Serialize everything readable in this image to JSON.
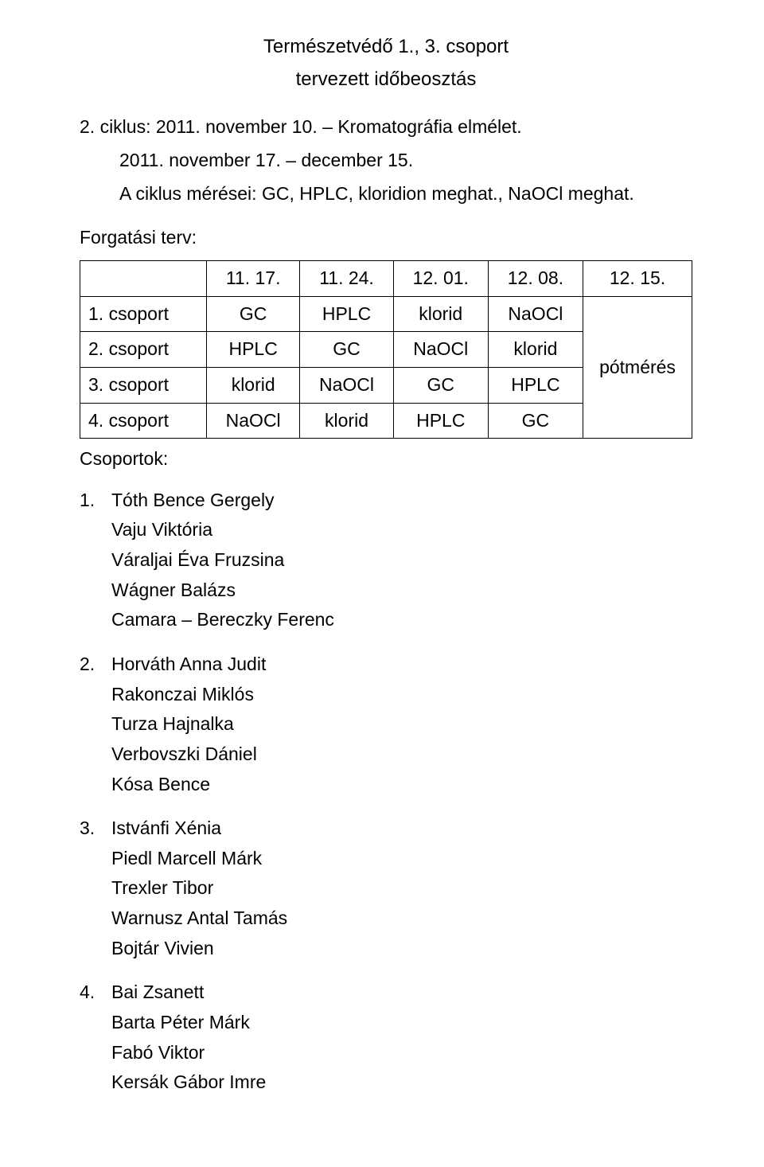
{
  "title": "Természetvédő 1., 3. csoport",
  "subtitle": "tervezett időbeosztás",
  "ciklus_line": "2. ciklus: 2011. november 10. – Kromatográfia elmélet.",
  "date_range": "2011. november 17. – december 15.",
  "meresek": "A ciklus mérései: GC, HPLC, kloridion meghat., NaOCl meghat.",
  "forgatasi": "Forgatási terv:",
  "table": {
    "header": [
      "",
      "11. 17.",
      "11. 24.",
      "12. 01.",
      "12. 08.",
      "12. 15."
    ],
    "rows": [
      [
        "1. csoport",
        "GC",
        "HPLC",
        "klorid",
        "NaOCl"
      ],
      [
        "2. csoport",
        "HPLC",
        "GC",
        "NaOCl",
        "klorid"
      ],
      [
        "3. csoport",
        "klorid",
        "NaOCl",
        "GC",
        "HPLC"
      ],
      [
        "4. csoport",
        "NaOCl",
        "klorid",
        "HPLC",
        "GC"
      ]
    ],
    "potmeres": "pótmérés"
  },
  "csoportok_label": "Csoportok:",
  "groups": [
    {
      "num": "1.",
      "head": "Tóth Bence Gergely",
      "members": [
        "Vaju Viktória",
        "Váraljai Éva Fruzsina",
        "Wágner Balázs",
        "Camara – Bereczky Ferenc"
      ]
    },
    {
      "num": "2.",
      "head": "Horváth Anna Judit",
      "members": [
        "Rakonczai Miklós",
        "Turza Hajnalka",
        "Verbovszki Dániel",
        "Kósa Bence"
      ]
    },
    {
      "num": "3.",
      "head": "Istvánfi Xénia",
      "members": [
        "Piedl Marcell Márk",
        "Trexler Tibor",
        "Warnusz Antal Tamás",
        "Bojtár Vivien"
      ]
    },
    {
      "num": "4.",
      "head": "Bai Zsanett",
      "members": [
        "Barta Péter Márk",
        "Fabó Viktor",
        "Kersák Gábor Imre"
      ]
    }
  ]
}
